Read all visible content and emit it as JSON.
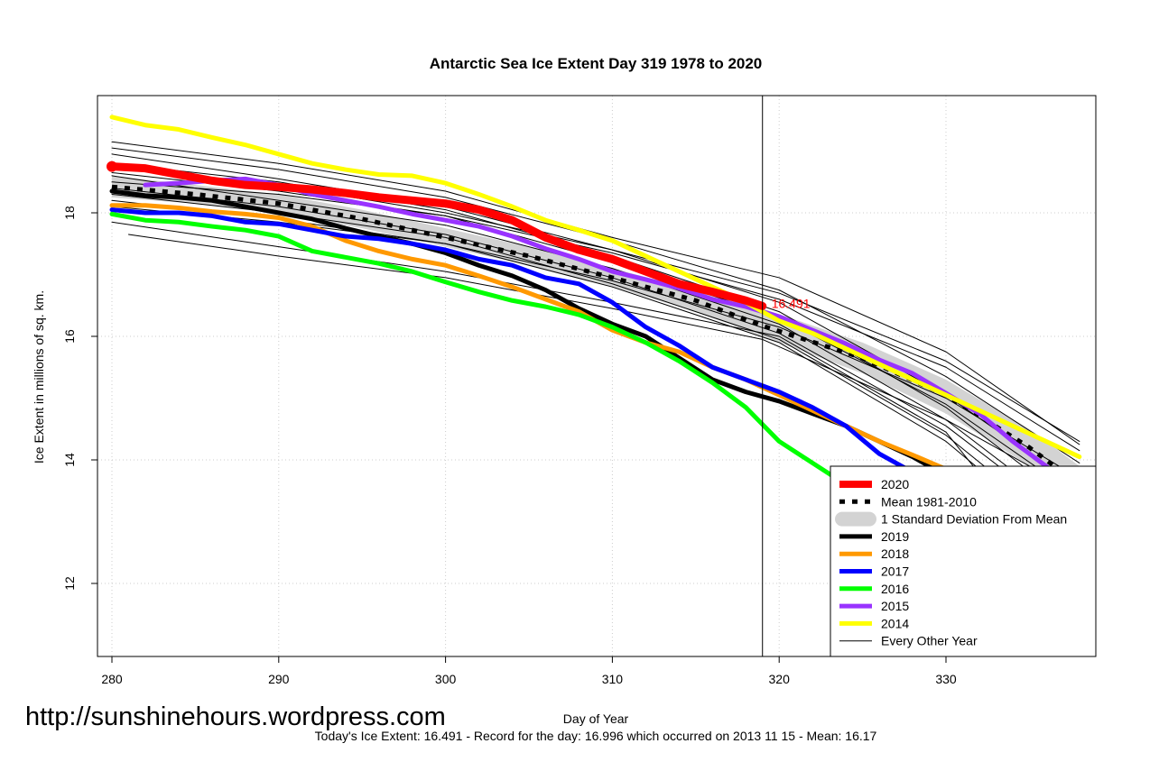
{
  "chart_data": {
    "type": "line",
    "title": "Antarctic Sea Ice Extent Day 319 1978 to 2020",
    "xlabel": "Day of Year",
    "ylabel": "Ice Extent in millions of sq. km.",
    "xlim": [
      280,
      338
    ],
    "ylim": [
      11,
      19.9
    ],
    "x_ticks": [
      280,
      290,
      300,
      310,
      320,
      330
    ],
    "y_ticks": [
      12,
      14,
      16,
      18
    ],
    "grid": true,
    "legend_position": "bottom-right",
    "reference_day": 319,
    "annotation": {
      "text": "16.491",
      "x": 319,
      "y": 16.491,
      "color": "#ff0000"
    },
    "mean_band": {
      "name": "1 Standard Deviation From Mean",
      "x": [
        280,
        285,
        290,
        295,
        300,
        305,
        310,
        315,
        319,
        325,
        330,
        335,
        338
      ],
      "low": [
        18.25,
        18.15,
        18.0,
        17.75,
        17.45,
        17.15,
        16.8,
        16.4,
        16.0,
        15.4,
        14.75,
        13.9,
        13.35
      ],
      "high": [
        18.6,
        18.45,
        18.3,
        18.05,
        17.75,
        17.45,
        17.1,
        16.75,
        16.45,
        15.9,
        15.3,
        14.5,
        13.9
      ]
    },
    "series": [
      {
        "name": "2020",
        "color": "#ff0000",
        "width": 9,
        "x": [
          280,
          282,
          284,
          286,
          288,
          290,
          292,
          294,
          296,
          298,
          300,
          302,
          304,
          306,
          308,
          310,
          312,
          314,
          316,
          318,
          319
        ],
        "y": [
          18.75,
          18.72,
          18.62,
          18.52,
          18.45,
          18.42,
          18.38,
          18.32,
          18.25,
          18.2,
          18.15,
          18.05,
          17.88,
          17.6,
          17.4,
          17.25,
          17.05,
          16.85,
          16.72,
          16.58,
          16.491
        ]
      },
      {
        "name": "Mean 1981-2010",
        "color": "#000000",
        "width": 5,
        "dash": "6,8",
        "x": [
          280,
          285,
          290,
          295,
          300,
          305,
          310,
          315,
          319,
          325,
          330,
          335,
          338
        ],
        "y": [
          18.42,
          18.3,
          18.15,
          17.9,
          17.6,
          17.3,
          16.95,
          16.58,
          16.17,
          15.65,
          15.05,
          14.2,
          13.6
        ]
      },
      {
        "name": "2019",
        "color": "#000000",
        "width": 5,
        "x": [
          280,
          282,
          284,
          286,
          288,
          290,
          292,
          294,
          296,
          298,
          300,
          302,
          304,
          306,
          308,
          310,
          312,
          314,
          316,
          318,
          320,
          322,
          324,
          326,
          328,
          330,
          332,
          334,
          336,
          338
        ],
        "y": [
          18.35,
          18.28,
          18.25,
          18.2,
          18.1,
          18.0,
          17.9,
          17.75,
          17.62,
          17.5,
          17.35,
          17.15,
          16.98,
          16.75,
          16.45,
          16.2,
          16.0,
          15.65,
          15.3,
          15.1,
          14.95,
          14.75,
          14.55,
          14.3,
          14.05,
          13.75,
          13.4,
          13.05,
          12.7,
          12.3
        ]
      },
      {
        "name": "2018",
        "color": "#ff9900",
        "width": 5,
        "x": [
          280,
          282,
          284,
          286,
          288,
          290,
          292,
          294,
          296,
          298,
          300,
          302,
          304,
          306,
          308,
          310,
          312,
          314,
          316,
          318,
          320,
          322,
          324,
          326,
          328,
          330,
          332,
          334,
          336,
          338
        ],
        "y": [
          18.12,
          18.12,
          18.08,
          18.02,
          17.98,
          17.92,
          17.78,
          17.55,
          17.38,
          17.25,
          17.15,
          16.98,
          16.8,
          16.6,
          16.4,
          16.1,
          15.9,
          15.75,
          15.5,
          15.3,
          15.05,
          14.8,
          14.55,
          14.3,
          14.08,
          13.85,
          13.55,
          13.25,
          12.85,
          12.55
        ]
      },
      {
        "name": "2017",
        "color": "#0000ff",
        "width": 5,
        "x": [
          280,
          282,
          284,
          286,
          288,
          290,
          292,
          294,
          296,
          298,
          300,
          302,
          304,
          306,
          308,
          310,
          312,
          314,
          316,
          318,
          320,
          322,
          324,
          326,
          328,
          330,
          332,
          334,
          336,
          338
        ],
        "y": [
          18.05,
          18.0,
          18.0,
          17.95,
          17.85,
          17.82,
          17.72,
          17.62,
          17.58,
          17.5,
          17.4,
          17.25,
          17.15,
          16.95,
          16.85,
          16.55,
          16.15,
          15.85,
          15.5,
          15.3,
          15.1,
          14.85,
          14.55,
          14.1,
          13.8,
          13.45,
          13.15,
          12.85,
          12.45,
          12.15
        ]
      },
      {
        "name": "2016",
        "color": "#00ff00",
        "width": 5,
        "x": [
          280,
          282,
          284,
          286,
          288,
          290,
          292,
          294,
          296,
          298,
          300,
          302,
          304,
          306,
          308,
          310,
          312,
          314,
          316,
          318,
          320,
          322,
          324,
          326,
          328,
          330,
          332,
          334,
          336,
          338
        ],
        "y": [
          17.98,
          17.88,
          17.85,
          17.78,
          17.72,
          17.62,
          17.38,
          17.28,
          17.18,
          17.05,
          16.88,
          16.72,
          16.58,
          16.48,
          16.35,
          16.15,
          15.9,
          15.6,
          15.25,
          14.85,
          14.3,
          13.95,
          13.6,
          13.3,
          13.0,
          12.75,
          12.3,
          11.85,
          11.55,
          11.15
        ]
      },
      {
        "name": "2015",
        "color": "#9933ff",
        "width": 5,
        "x": [
          282,
          284,
          286,
          288,
          290,
          292,
          294,
          296,
          298,
          300,
          302,
          304,
          306,
          308,
          310,
          312,
          314,
          316,
          318,
          320,
          322,
          324,
          326,
          328,
          330,
          332,
          334,
          336,
          338
        ],
        "y": [
          18.45,
          18.48,
          18.52,
          18.55,
          18.45,
          18.3,
          18.2,
          18.1,
          17.98,
          17.88,
          17.78,
          17.62,
          17.42,
          17.25,
          17.05,
          16.92,
          16.78,
          16.6,
          16.48,
          16.32,
          16.1,
          15.88,
          15.62,
          15.4,
          15.08,
          14.75,
          14.3,
          13.9,
          13.45
        ]
      },
      {
        "name": "2014",
        "color": "#ffff00",
        "width": 5,
        "x": [
          280,
          282,
          284,
          286,
          288,
          290,
          292,
          294,
          296,
          298,
          300,
          302,
          304,
          306,
          308,
          310,
          312,
          314,
          316,
          318,
          320,
          322,
          324,
          326,
          328,
          330,
          332,
          334,
          336,
          338
        ],
        "y": [
          19.55,
          19.42,
          19.35,
          19.22,
          19.1,
          18.95,
          18.8,
          18.7,
          18.62,
          18.6,
          18.48,
          18.3,
          18.1,
          17.88,
          17.72,
          17.55,
          17.3,
          17.05,
          16.8,
          16.55,
          16.25,
          16.05,
          15.8,
          15.55,
          15.3,
          15.05,
          14.8,
          14.55,
          14.3,
          14.05
        ]
      },
      {
        "name": "Every Other Year",
        "color": "#000000",
        "width": 1,
        "legend": true,
        "x": [
          280,
          290,
          300,
          310,
          320,
          330,
          338
        ],
        "y": [
          19.15,
          18.8,
          18.35,
          17.6,
          16.95,
          15.75,
          14.25
        ]
      },
      {
        "name": "",
        "color": "#000000",
        "width": 1,
        "legend": false,
        "x": [
          281,
          290,
          300,
          310,
          319,
          330,
          338
        ],
        "y": [
          17.65,
          17.3,
          16.95,
          16.45,
          15.95,
          14.65,
          13.45
        ]
      },
      {
        "name": "",
        "color": "#000000",
        "width": 1,
        "legend": false,
        "x": [
          280,
          290,
          300,
          310,
          320,
          330,
          338
        ],
        "y": [
          17.85,
          17.45,
          17.05,
          16.55,
          16.0,
          14.45,
          11.75
        ]
      },
      {
        "name": "",
        "color": "#000000",
        "width": 1,
        "legend": false,
        "x": [
          280,
          290,
          300,
          310,
          320,
          330,
          338
        ],
        "y": [
          19.05,
          18.7,
          18.25,
          17.55,
          16.75,
          15.35,
          13.95
        ]
      },
      {
        "name": "",
        "color": "#000000",
        "width": 1,
        "legend": false,
        "x": [
          280,
          290,
          300,
          310,
          320,
          330,
          338
        ],
        "y": [
          18.95,
          18.55,
          18.1,
          17.4,
          16.55,
          15.05,
          13.55
        ]
      },
      {
        "name": "",
        "color": "#000000",
        "width": 1,
        "legend": false,
        "x": [
          280,
          290,
          300,
          310,
          320,
          330,
          338
        ],
        "y": [
          18.8,
          18.5,
          18.05,
          17.3,
          16.4,
          14.85,
          13.2
        ]
      },
      {
        "name": "",
        "color": "#000000",
        "width": 1,
        "legend": false,
        "x": [
          280,
          290,
          300,
          310,
          320,
          330,
          338
        ],
        "y": [
          18.65,
          18.35,
          17.95,
          17.2,
          16.3,
          14.9,
          13.4
        ]
      },
      {
        "name": "",
        "color": "#000000",
        "width": 1,
        "legend": false,
        "x": [
          280,
          290,
          300,
          310,
          320,
          330,
          338
        ],
        "y": [
          18.6,
          18.2,
          17.8,
          17.1,
          16.2,
          14.65,
          13.0
        ]
      },
      {
        "name": "",
        "color": "#000000",
        "width": 1,
        "legend": false,
        "x": [
          280,
          290,
          300,
          310,
          320,
          330,
          338
        ],
        "y": [
          18.4,
          18.1,
          17.65,
          16.95,
          16.05,
          14.55,
          12.9
        ]
      },
      {
        "name": "",
        "color": "#000000",
        "width": 1,
        "legend": false,
        "x": [
          280,
          290,
          300,
          310,
          320,
          330,
          338
        ],
        "y": [
          18.3,
          18.0,
          17.6,
          16.85,
          15.95,
          14.4,
          12.65
        ]
      },
      {
        "name": "",
        "color": "#000000",
        "width": 1,
        "legend": false,
        "x": [
          280,
          290,
          300,
          310,
          320,
          330,
          338
        ],
        "y": [
          18.2,
          17.9,
          17.5,
          16.8,
          15.9,
          14.3,
          12.5
        ]
      },
      {
        "name": "",
        "color": "#000000",
        "width": 1,
        "legend": false,
        "x": [
          280,
          290,
          300,
          310,
          320,
          330,
          338
        ],
        "y": [
          18.1,
          17.85,
          17.5,
          16.9,
          16.15,
          15.0,
          13.7
        ]
      },
      {
        "name": "",
        "color": "#000000",
        "width": 1,
        "legend": false,
        "x": [
          280,
          290,
          300,
          310,
          320,
          330,
          338
        ],
        "y": [
          18.5,
          18.3,
          17.95,
          17.35,
          16.6,
          15.5,
          14.15
        ]
      },
      {
        "name": "",
        "color": "#000000",
        "width": 1,
        "legend": false,
        "x": [
          280,
          290,
          300,
          310,
          320,
          330,
          338
        ],
        "y": [
          18.75,
          18.45,
          18.0,
          17.4,
          16.7,
          15.6,
          14.3
        ]
      }
    ],
    "legend": [
      {
        "label": "2020",
        "color": "#ff0000",
        "kind": "thick"
      },
      {
        "label": "Mean 1981-2010",
        "color": "#000000",
        "kind": "dash"
      },
      {
        "label": "1 Standard Deviation From Mean",
        "color": "#d3d3d3",
        "kind": "band"
      },
      {
        "label": "2019",
        "color": "#000000",
        "kind": "line"
      },
      {
        "label": "2018",
        "color": "#ff9900",
        "kind": "line"
      },
      {
        "label": "2017",
        "color": "#0000ff",
        "kind": "line"
      },
      {
        "label": "2016",
        "color": "#00ff00",
        "kind": "line"
      },
      {
        "label": "2015",
        "color": "#9933ff",
        "kind": "line"
      },
      {
        "label": "2014",
        "color": "#ffff00",
        "kind": "line"
      },
      {
        "label": "Every Other Year",
        "color": "#000000",
        "kind": "thin"
      }
    ]
  },
  "watermark": "http://sunshinehours.wordpress.com",
  "footer": "Today's Ice Extent: 16.491  - Record for the day: 16.996 which occurred on 2013 11 15  - Mean: 16.17"
}
